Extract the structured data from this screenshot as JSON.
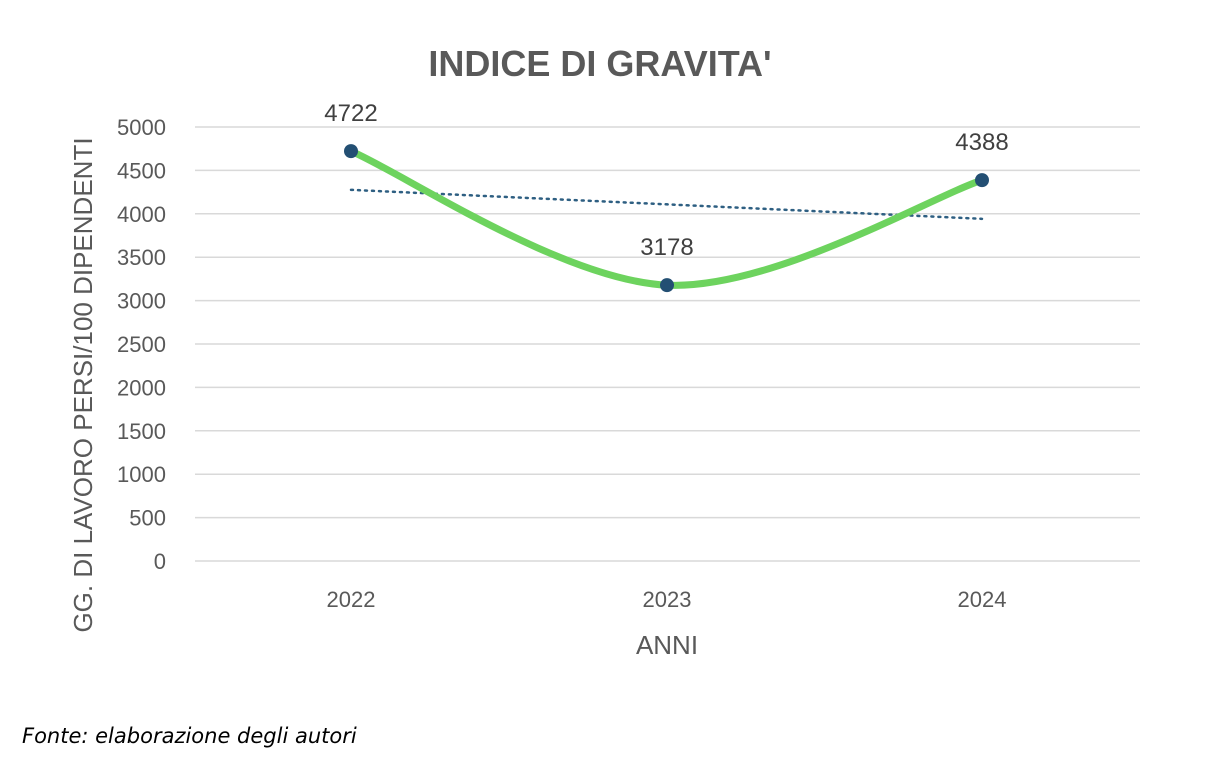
{
  "source_note": "Fonte: elaborazione degli autori",
  "chart_data": {
    "type": "line",
    "title": "INDICE DI GRAVITA'",
    "xlabel": "ANNI",
    "ylabel": "GG. DI LAVORO PERSI/100 DIPENDENTI",
    "categories": [
      "2022",
      "2023",
      "2024"
    ],
    "series": [
      {
        "values": [
          4722,
          3178,
          4388
        ],
        "color": "#6dd35e",
        "marker_color": "#234f73",
        "smooth": true,
        "data_labels": [
          "4722",
          "3178",
          "4388"
        ]
      }
    ],
    "trendline": {
      "type": "linear",
      "color": "#2e5f82",
      "style": "dotted",
      "values": [
        4276,
        4109,
        3942
      ]
    },
    "ylim": [
      0,
      5000
    ],
    "yticks": [
      0,
      500,
      1000,
      1500,
      2000,
      2500,
      3000,
      3500,
      4000,
      4500,
      5000
    ],
    "grid": true,
    "legend": "none"
  }
}
